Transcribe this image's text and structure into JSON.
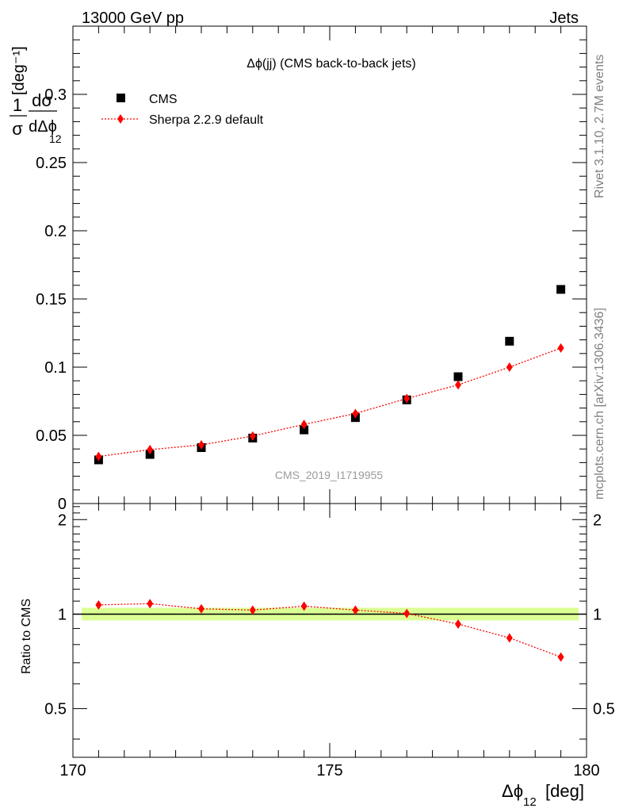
{
  "header": {
    "left": "13000 GeV pp",
    "right": "Jets"
  },
  "side_labels": {
    "rivet": "Rivet 3.1.10,  2.7M events",
    "mcplots": "mcplots.cern.ch [arXiv:1306.3436]"
  },
  "chart_data": [
    {
      "type": "scatter",
      "panel": "main",
      "title": "Δϕ(jj) (CMS back-to-back jets)",
      "watermark": "CMS_2019_I1719955",
      "ylabel": "1/σ dσ/dΔϕ_12 [deg^-1]",
      "ylim": [
        0,
        0.35
      ],
      "xlim": [
        170,
        180
      ],
      "yticks": [
        0,
        0.05,
        0.1,
        0.15,
        0.2,
        0.25,
        0.3
      ],
      "ytick_labels": [
        "0",
        "0.05",
        "0.1",
        "0.15",
        "0.2",
        "0.25",
        "0.3"
      ],
      "legend_position": "top-left",
      "x": [
        170.5,
        171.5,
        172.5,
        173.5,
        174.5,
        175.5,
        176.5,
        177.5,
        178.5,
        179.5
      ],
      "series": [
        {
          "name": "CMS",
          "color": "#000000",
          "marker": "square",
          "values": [
            0.032,
            0.036,
            0.041,
            0.048,
            0.054,
            0.063,
            0.076,
            0.093,
            0.119,
            0.157
          ]
        },
        {
          "name": "Sherpa 2.2.9 default",
          "color": "#ff0000",
          "marker": "diamond",
          "line": "dotted",
          "values": [
            0.0345,
            0.0395,
            0.043,
            0.0495,
            0.058,
            0.066,
            0.077,
            0.087,
            0.1,
            0.114
          ]
        }
      ]
    },
    {
      "type": "line",
      "panel": "ratio",
      "ylabel": "Ratio to CMS",
      "xlabel": "Δϕ_12 [deg]",
      "ylim": [
        0.35,
        2.25
      ],
      "xlim": [
        170,
        180
      ],
      "xticks": [
        170,
        175,
        180
      ],
      "xtick_labels": [
        "170",
        "175",
        "180"
      ],
      "yticks": [
        0.5,
        1,
        2
      ],
      "ytick_labels": [
        "0.5",
        "1",
        "2"
      ],
      "x": [
        170.5,
        171.5,
        172.5,
        173.5,
        174.5,
        175.5,
        176.5,
        177.5,
        178.5,
        179.5
      ],
      "series": [
        {
          "name": "Sherpa 2.2.9 default",
          "color": "#ff0000",
          "values": [
            1.07,
            1.08,
            1.04,
            1.03,
            1.06,
            1.03,
            1.005,
            0.93,
            0.84,
            0.73
          ]
        }
      ],
      "band_color": "#ccff66"
    }
  ]
}
